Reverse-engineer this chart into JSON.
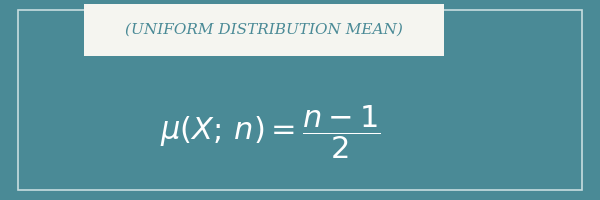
{
  "bg_color": "#4a8a96",
  "title_text": "(UNIFORM DISTRIBUTION MEAN)",
  "title_bg": "#f5f5f0",
  "title_text_color": "#4a8a96",
  "formula_color": "#ffffff",
  "border_color": "#c8dde0",
  "fig_width": 6.0,
  "fig_height": 2.0,
  "title_fontsize": 11,
  "formula_fontsize": 22
}
